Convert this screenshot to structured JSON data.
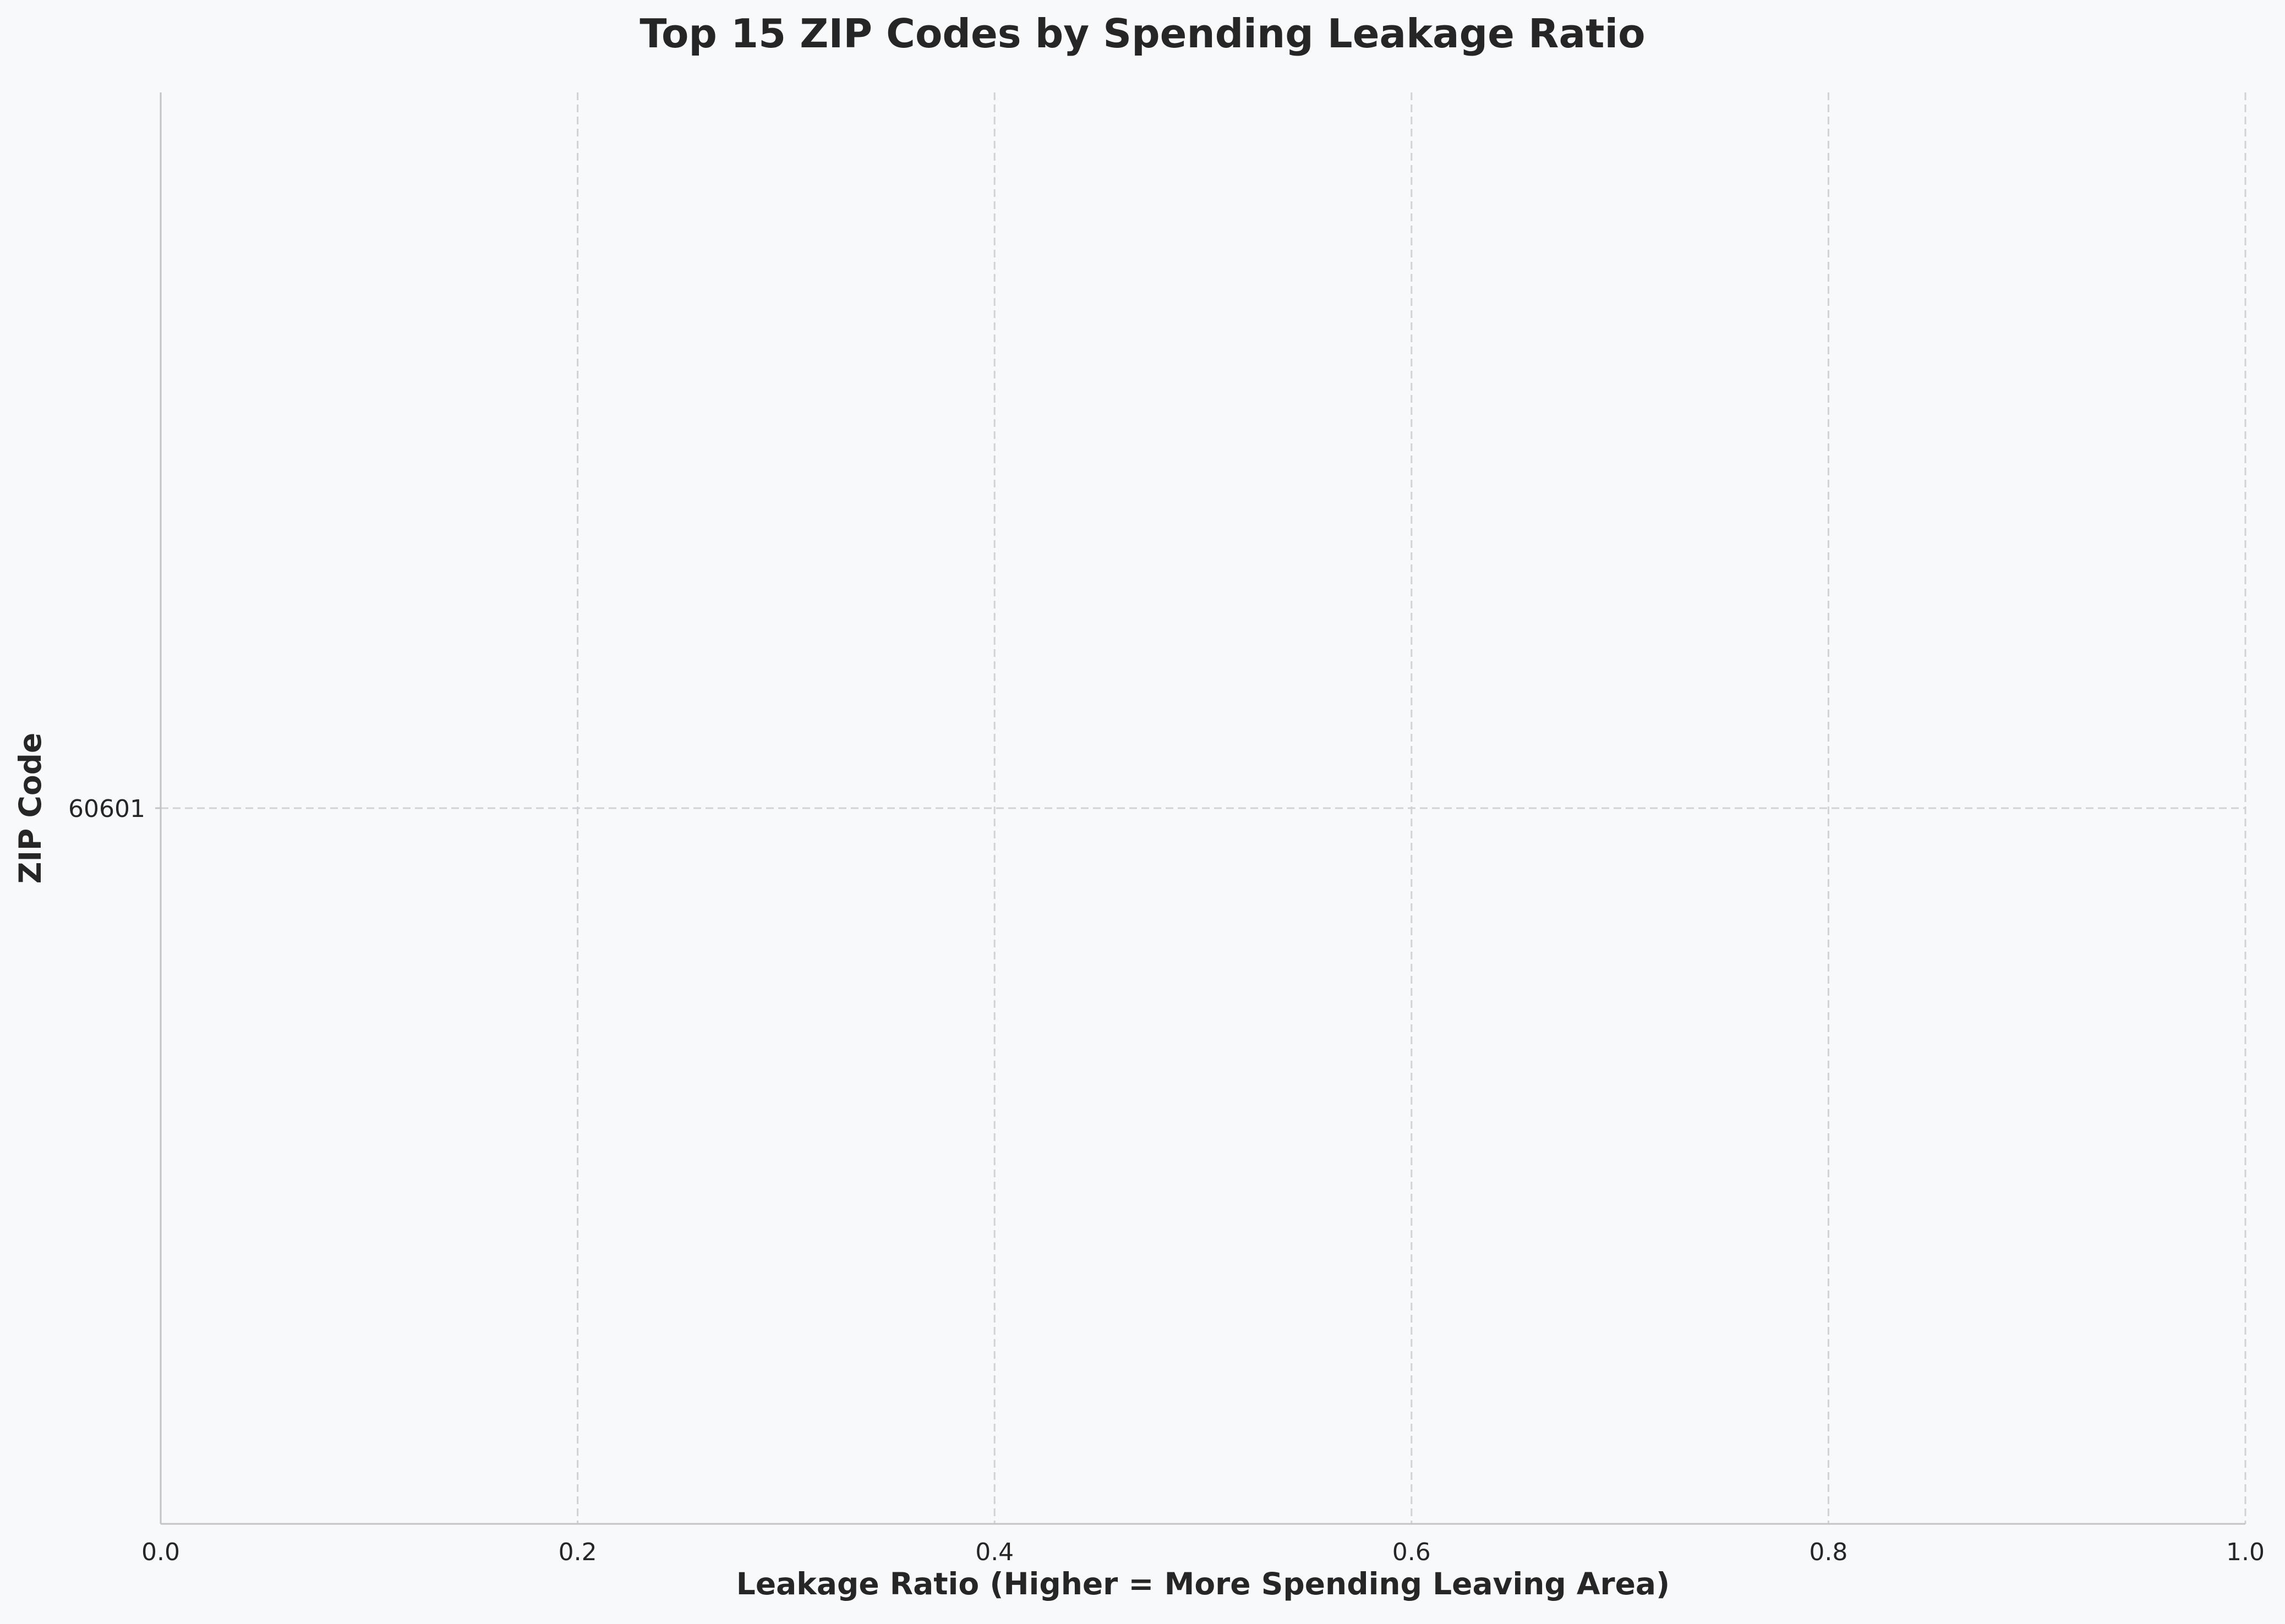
{
  "chart_data": {
    "type": "bar",
    "orientation": "horizontal",
    "title": "Top 15 ZIP Codes by Spending Leakage Ratio",
    "xlabel": "Leakage Ratio (Higher = More Spending Leaving Area)",
    "ylabel": "ZIP Code",
    "xlim": [
      0.0,
      1.0
    ],
    "xticks": [
      "0.0",
      "0.2",
      "0.4",
      "0.6",
      "0.8",
      "1.0"
    ],
    "categories": [
      "60601"
    ],
    "values": [
      null
    ],
    "grid": true,
    "legend": "none",
    "colors": {
      "background": "#f8f9fb",
      "grid": "#cfd2d6",
      "spine": "#c4c4c4",
      "text": "#262626"
    }
  }
}
